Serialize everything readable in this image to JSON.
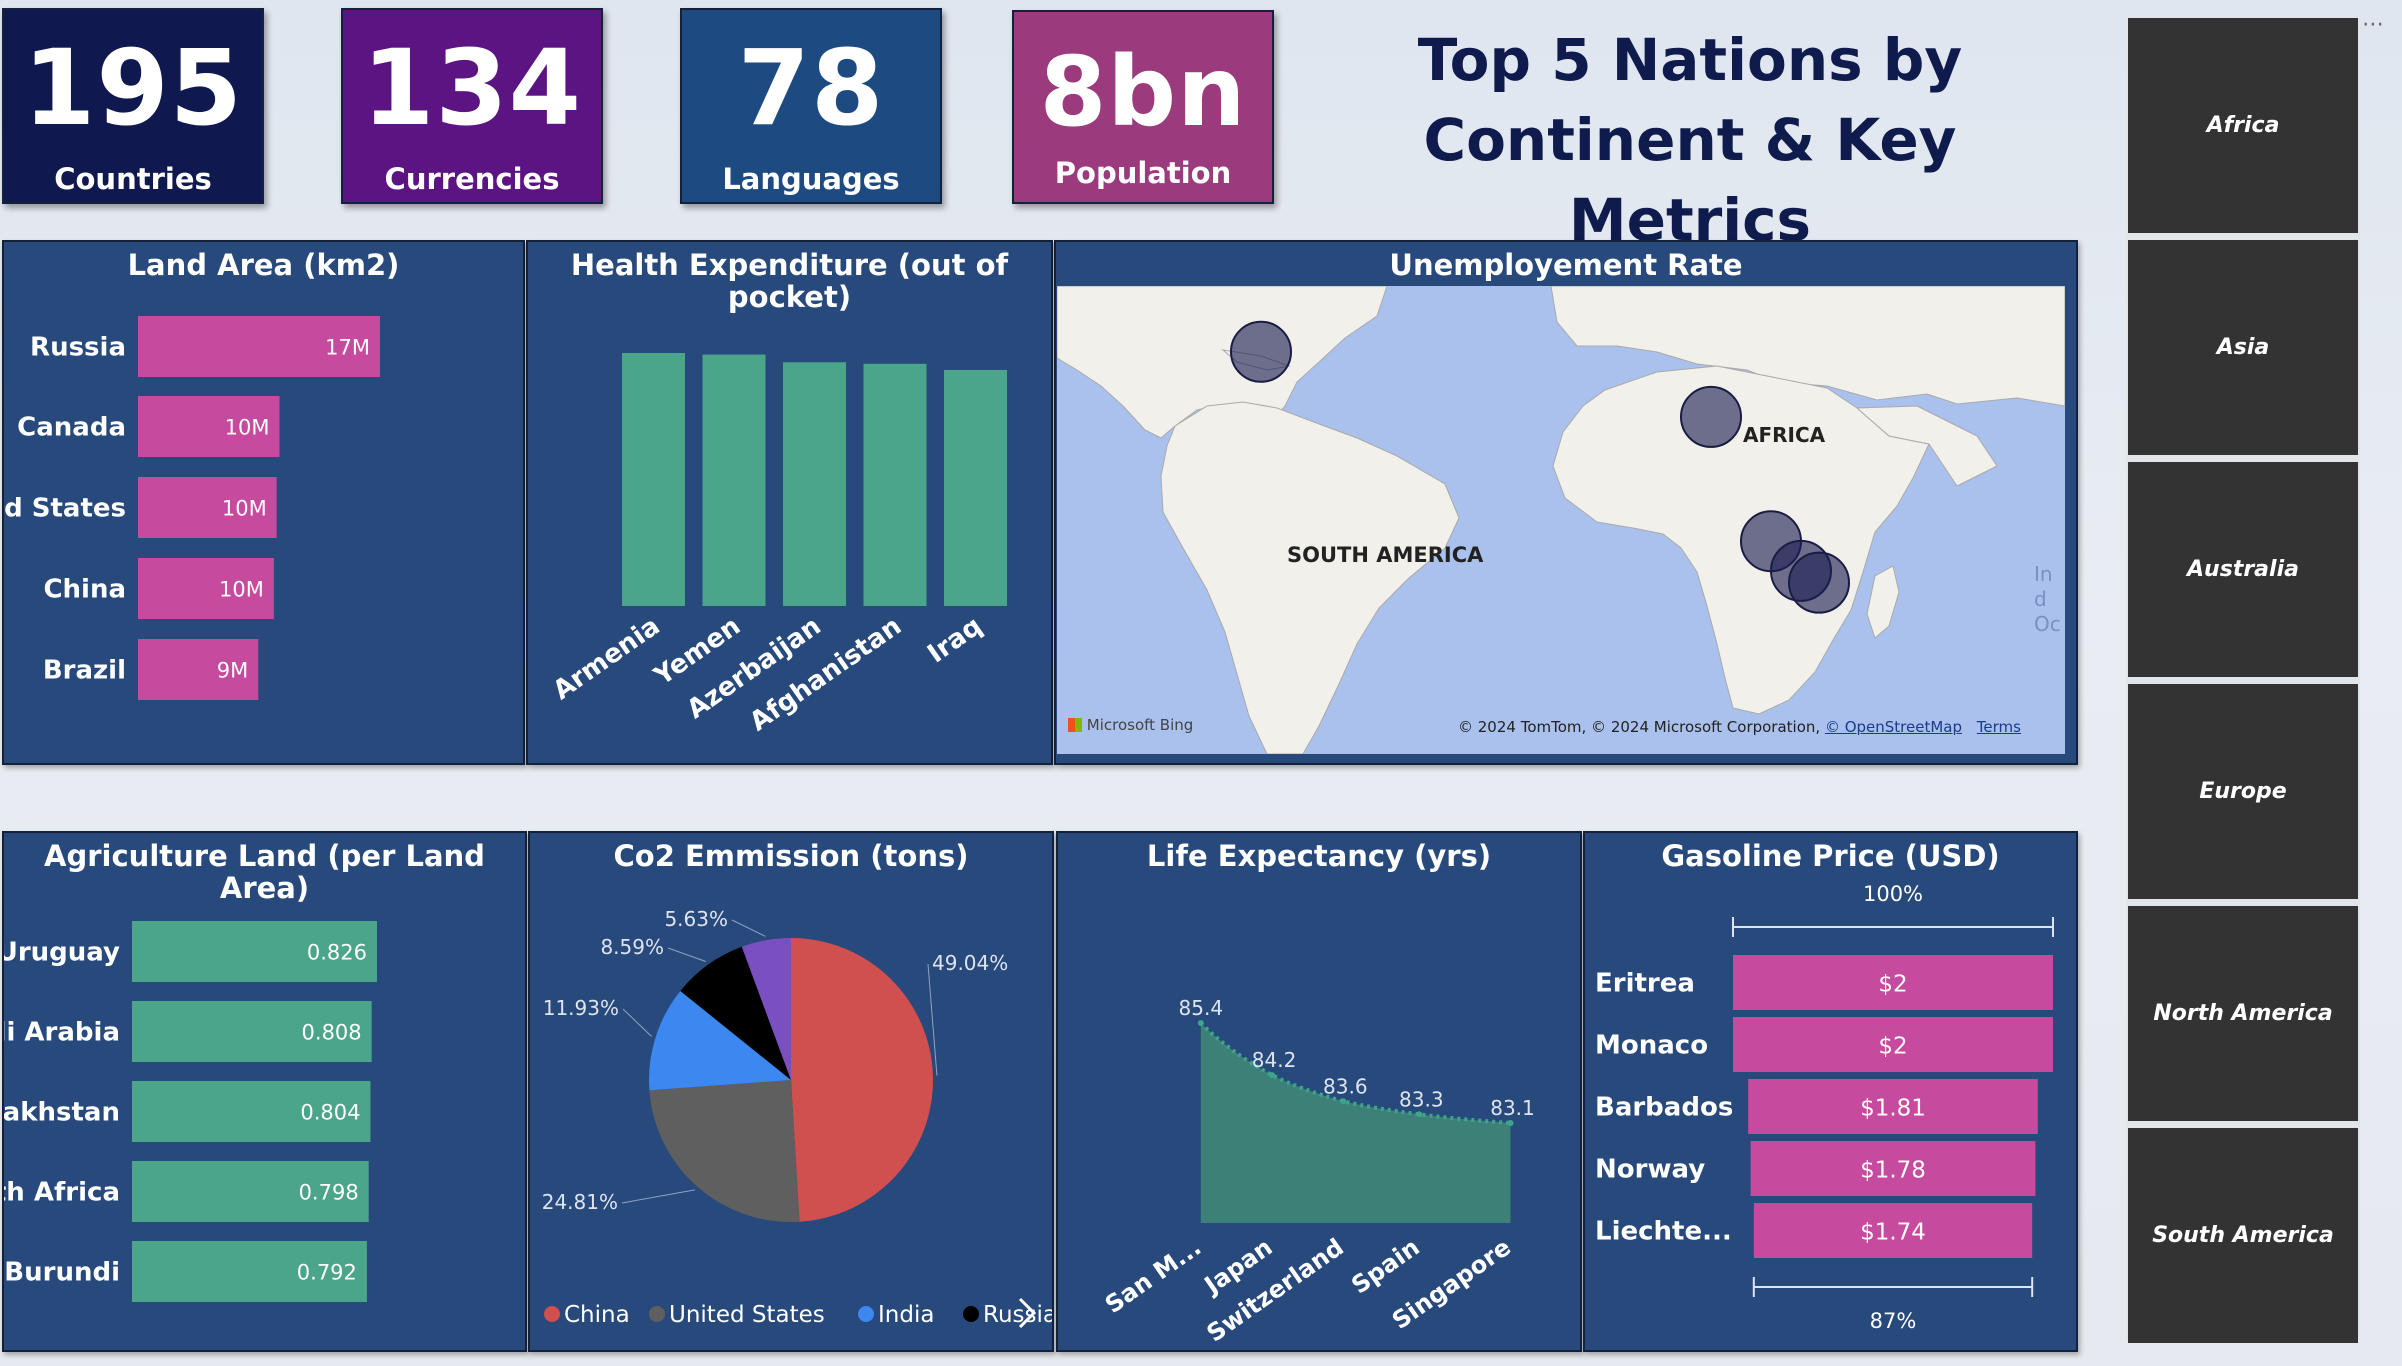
{
  "kpis": [
    {
      "value": "195",
      "label": "Countries",
      "color": "#0f1950"
    },
    {
      "value": "134",
      "label": "Currencies",
      "color": "#5c1482"
    },
    {
      "value": "78",
      "label": "Languages",
      "color": "#1d4a80"
    },
    {
      "value": "8bn",
      "label": "Population",
      "color": "#9b3a7c"
    }
  ],
  "title_line1": "Top 5 Nations by",
  "title_line2": "Continent & Key Metrics",
  "slicer": {
    "items": [
      "Africa",
      "Asia",
      "Australia",
      "Europe",
      "North America",
      "South America"
    ],
    "more_icon": "more-options-icon"
  },
  "map": {
    "title": "Unemployement Rate",
    "label_south_america": "SOUTH AMERICA",
    "label_africa": "AFRICA",
    "label_ocean": "Ind Oc",
    "bing_logo": "Microsoft Bing",
    "credit": "© 2024 TomTom, © 2024 Microsoft Corporation, ",
    "credit_link": "© OpenStreetMap",
    "terms": "Terms"
  },
  "chart_data": [
    {
      "id": "land_area",
      "type": "bar",
      "orientation": "horizontal",
      "title": "Land Area (km2)",
      "categories": [
        "Russia",
        "Canada",
        "United States",
        "China",
        "Brazil"
      ],
      "values": [
        17.1,
        10.0,
        9.8,
        9.6,
        8.5
      ],
      "data_labels": [
        "17M",
        "10M",
        "10M",
        "10M",
        "9M"
      ],
      "color": "#c64a9d"
    },
    {
      "id": "health_expenditure",
      "type": "bar",
      "orientation": "vertical",
      "title": "Health Expenditure (out of pocket)",
      "categories": [
        "Armenia",
        "Yemen",
        "Azerbaijan",
        "Afghanistan",
        "Iraq"
      ],
      "values": [
        82,
        81.5,
        79,
        78.5,
        76.5
      ],
      "color": "#4aa58a"
    },
    {
      "id": "unemployment_map",
      "type": "scatter",
      "title": "Unemployement Rate",
      "points": [
        {
          "lon": -66,
          "lat": 10
        },
        {
          "lon": 9,
          "lat": -1
        },
        {
          "lon": 19,
          "lat": -22
        },
        {
          "lon": 24,
          "lat": -27
        },
        {
          "lon": 27,
          "lat": -29
        }
      ]
    },
    {
      "id": "agriculture_land",
      "type": "bar",
      "orientation": "horizontal",
      "title": "Agriculture Land (per Land Area)",
      "categories": [
        "Uruguay",
        "Saudi Arabia",
        "Kazakhstan",
        "South Africa",
        "Burundi"
      ],
      "values": [
        0.826,
        0.808,
        0.804,
        0.798,
        0.792
      ],
      "data_labels": [
        "0.826",
        "0.808",
        "0.804",
        "0.798",
        "0.792"
      ],
      "color": "#4aa58a"
    },
    {
      "id": "co2_emission",
      "type": "pie",
      "title": "Co2 Emmission (tons)",
      "series": [
        {
          "name": "China",
          "value": 49.04,
          "label": "49.04%",
          "color": "#d04f4f"
        },
        {
          "name": "United States",
          "value": 24.81,
          "label": "24.81%",
          "color": "#5f5f5f"
        },
        {
          "name": "India",
          "value": 11.93,
          "label": "11.93%",
          "color": "#3d87f0"
        },
        {
          "name": "Russia",
          "value": 8.59,
          "label": "8.59%",
          "color": "#000000"
        },
        {
          "value": 5.63,
          "label": "5.63%",
          "color": "#7a4fc0"
        }
      ],
      "legend": [
        "China",
        "United States",
        "India",
        "Russia"
      ],
      "legend_placement": "bottom"
    },
    {
      "id": "life_expectancy",
      "type": "area",
      "title": "Life Expectancy (yrs)",
      "categories": [
        "San M...",
        "Japan",
        "Switzerland",
        "Spain",
        "Singapore"
      ],
      "values": [
        85.4,
        84.2,
        83.6,
        83.3,
        83.1
      ],
      "data_labels": [
        "85.4",
        "84.2",
        "83.6",
        "83.3",
        "83.1"
      ],
      "color": "#3d8077"
    },
    {
      "id": "gasoline_price",
      "type": "bar",
      "orientation": "horizontal",
      "style": "funnel",
      "title": "Gasoline Price (USD)",
      "categories": [
        "Eritrea",
        "Monaco",
        "Barbados",
        "Norway",
        "Liechte..."
      ],
      "values": [
        2.0,
        2.0,
        1.81,
        1.78,
        1.74
      ],
      "data_labels": [
        "$2",
        "$2",
        "$1.81",
        "$1.78",
        "$1.74"
      ],
      "top_percent_label": "100%",
      "bottom_percent_label": "87%",
      "color": "#c64a9d"
    }
  ]
}
